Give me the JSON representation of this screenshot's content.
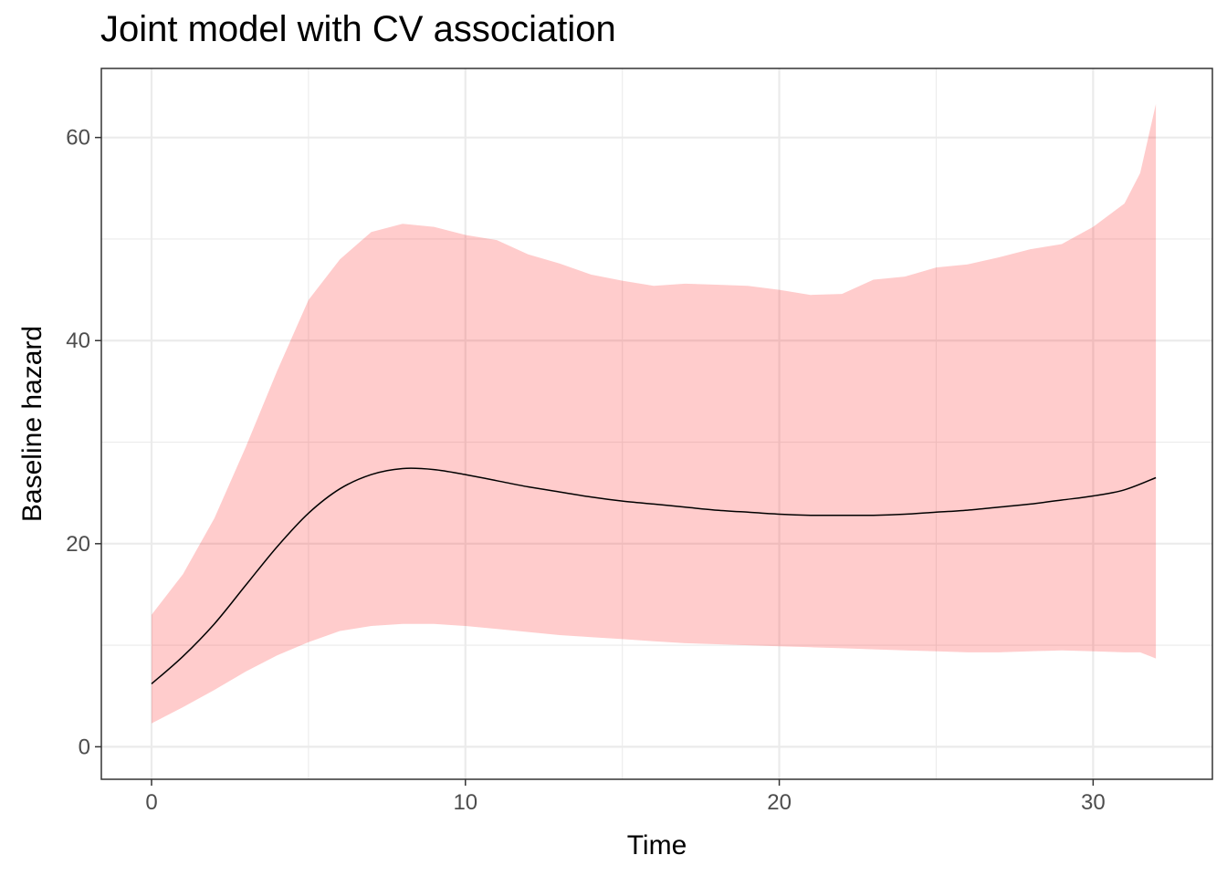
{
  "chart_data": {
    "type": "line",
    "title": "Joint model with CV association",
    "xlabel": "Time",
    "ylabel": "Baseline hazard",
    "xlim": [
      -1.6,
      33.8
    ],
    "ylim": [
      -3.2,
      66.8
    ],
    "x_ticks": [
      0,
      10,
      20,
      30
    ],
    "y_ticks": [
      0,
      20,
      40,
      60
    ],
    "x_tick_labels": [
      "0",
      "10",
      "20",
      "30"
    ],
    "y_tick_labels": [
      "0",
      "20",
      "40",
      "60"
    ],
    "grid": true,
    "legend": "none",
    "colors": {
      "line": "#000000",
      "ribbon": "#ff0000",
      "ribbon_opacity": 0.2,
      "grid": "#ebebeb",
      "panel_border": "#333333"
    },
    "series": [
      {
        "kind": "line",
        "x": [
          0,
          1,
          2,
          3,
          4,
          5,
          6,
          7,
          8,
          9,
          10,
          11,
          12,
          13,
          14,
          15,
          16,
          17,
          18,
          19,
          20,
          21,
          22,
          23,
          24,
          25,
          26,
          27,
          28,
          29,
          30,
          31,
          32
        ],
        "y": [
          6.2,
          8.9,
          12.1,
          15.9,
          19.7,
          23.0,
          25.4,
          26.8,
          27.4,
          27.3,
          26.8,
          26.2,
          25.6,
          25.1,
          24.6,
          24.2,
          23.9,
          23.6,
          23.3,
          23.1,
          22.9,
          22.8,
          22.8,
          22.8,
          22.9,
          23.1,
          23.3,
          23.6,
          23.9,
          24.3,
          24.7,
          25.3,
          26.5
        ]
      },
      {
        "kind": "ribbon",
        "x": [
          0,
          1,
          2,
          3,
          4,
          5,
          6,
          7,
          8,
          9,
          10,
          11,
          12,
          13,
          14,
          15,
          16,
          17,
          18,
          19,
          20,
          21,
          22,
          23,
          24,
          25,
          26,
          27,
          28,
          29,
          30,
          31,
          31.5,
          32
        ],
        "lower": [
          2.3,
          3.9,
          5.6,
          7.4,
          9.0,
          10.3,
          11.4,
          11.9,
          12.1,
          12.1,
          11.9,
          11.6,
          11.3,
          11.0,
          10.8,
          10.6,
          10.4,
          10.2,
          10.1,
          10.0,
          9.9,
          9.8,
          9.7,
          9.6,
          9.5,
          9.4,
          9.3,
          9.3,
          9.4,
          9.5,
          9.4,
          9.3,
          9.3,
          8.7
        ],
        "upper": [
          13.0,
          17.0,
          22.5,
          29.5,
          37.0,
          44.0,
          48.0,
          50.7,
          51.5,
          51.2,
          50.4,
          49.9,
          48.5,
          47.6,
          46.5,
          45.9,
          45.4,
          45.6,
          45.5,
          45.4,
          45.0,
          44.5,
          44.6,
          46.0,
          46.3,
          47.2,
          47.5,
          48.2,
          49.0,
          49.5,
          51.2,
          53.5,
          56.5,
          63.3
        ]
      }
    ]
  }
}
